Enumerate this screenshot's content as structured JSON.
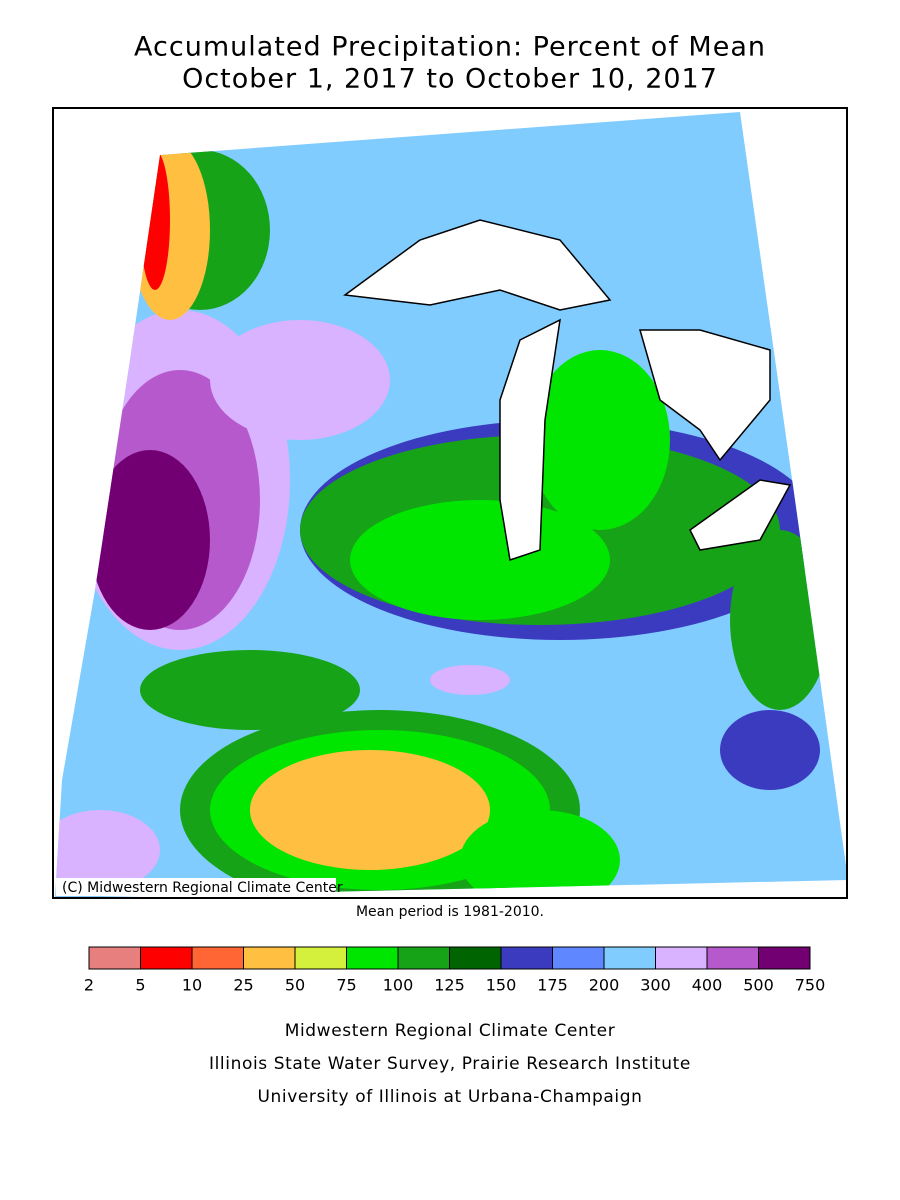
{
  "title": [
    "Accumulated Precipitation: Percent of Mean",
    "October 1, 2017 to October 10, 2017"
  ],
  "map": {
    "copyright": "(C) Midwestern Regional Climate Center",
    "note": "Mean period is 1981-2010."
  },
  "legend": {
    "ticks": [
      2,
      5,
      10,
      25,
      50,
      75,
      100,
      125,
      150,
      175,
      200,
      300,
      400,
      500,
      750
    ],
    "colors": [
      "#e87f7f",
      "#ff0000",
      "#ff6633",
      "#ffbf40",
      "#d4f03c",
      "#00e600",
      "#17a317",
      "#006400",
      "#3b3bbf",
      "#5f87ff",
      "#80ccff",
      "#d9b3ff",
      "#b659cc",
      "#730073"
    ]
  },
  "credits": [
    "Midwestern Regional Climate Center",
    "Illinois State Water Survey, Prairie Research Institute",
    "University of Illinois at Urbana-Champaign"
  ]
}
